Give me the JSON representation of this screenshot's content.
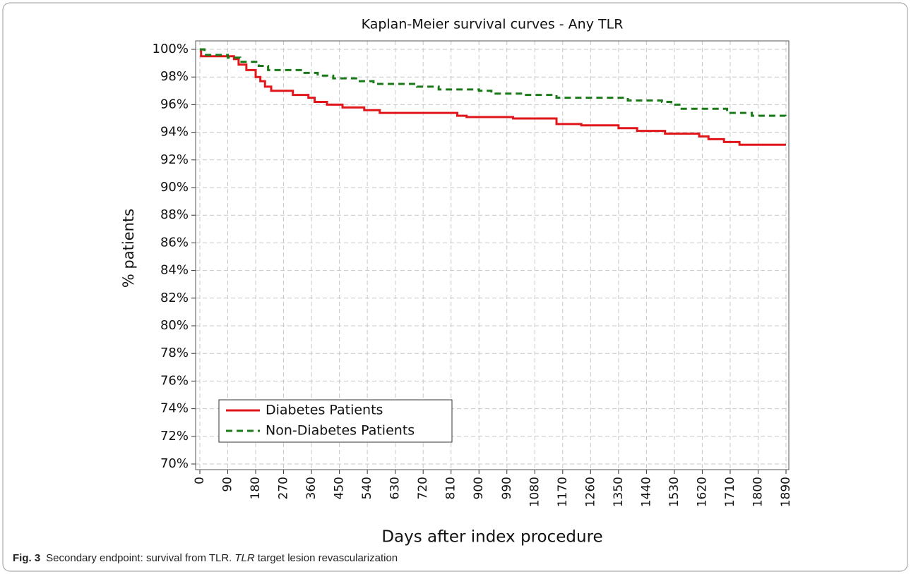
{
  "chart_data": {
    "type": "line",
    "step": true,
    "title": "Kaplan-Meier survival curves - Any TLR",
    "x_label": "Days after index procedure",
    "y_label": "% patients",
    "xlim": [
      0,
      1890
    ],
    "ylim": [
      70,
      100
    ],
    "xticks": [
      0,
      90,
      180,
      270,
      360,
      450,
      540,
      630,
      720,
      810,
      900,
      990,
      1080,
      1170,
      1260,
      1350,
      1440,
      1530,
      1620,
      1710,
      1800,
      1890
    ],
    "yticks": [
      {
        "value": 70,
        "label": "70%"
      },
      {
        "value": 72,
        "label": "72%"
      },
      {
        "value": 74,
        "label": "74%"
      },
      {
        "value": 76,
        "label": "76%"
      },
      {
        "value": 78,
        "label": "78%"
      },
      {
        "value": 80,
        "label": "80%"
      },
      {
        "value": 82,
        "label": "82%"
      },
      {
        "value": 84,
        "label": "84%"
      },
      {
        "value": 86,
        "label": "86%"
      },
      {
        "value": 88,
        "label": "88%"
      },
      {
        "value": 90,
        "label": "90%"
      },
      {
        "value": 92,
        "label": "92%"
      },
      {
        "value": 94,
        "label": "94%"
      },
      {
        "value": 96,
        "label": "96%"
      },
      {
        "value": 98,
        "label": "98%"
      },
      {
        "value": 100,
        "label": "100%"
      }
    ],
    "grid": true,
    "legend": "lower left",
    "series": [
      {
        "name": "Diabetes Patients",
        "color": "#e0161b",
        "linestyle": "solid",
        "x": [
          0,
          4,
          110,
          125,
          150,
          180,
          195,
          210,
          230,
          300,
          350,
          370,
          410,
          460,
          530,
          580,
          830,
          860,
          1010,
          1150,
          1230,
          1350,
          1410,
          1500,
          1610,
          1640,
          1690,
          1740,
          1890
        ],
        "values": [
          100,
          99.5,
          99.3,
          98.9,
          98.5,
          98.0,
          97.7,
          97.3,
          97.0,
          96.7,
          96.5,
          96.2,
          96.0,
          95.8,
          95.6,
          95.4,
          95.2,
          95.1,
          95.0,
          94.6,
          94.5,
          94.3,
          94.1,
          93.9,
          93.7,
          93.5,
          93.3,
          93.1,
          93.1
        ]
      },
      {
        "name": "Non-Diabetes Patients",
        "color": "#1a7a1a",
        "linestyle": "dashed",
        "x": [
          0,
          15,
          90,
          130,
          190,
          220,
          330,
          380,
          430,
          510,
          560,
          700,
          770,
          900,
          940,
          1040,
          1150,
          1380,
          1490,
          1520,
          1550,
          1700,
          1780,
          1888
        ],
        "values": [
          100,
          99.6,
          99.4,
          99.1,
          98.8,
          98.5,
          98.3,
          98.1,
          97.9,
          97.7,
          97.5,
          97.3,
          97.1,
          97.0,
          96.8,
          96.7,
          96.5,
          96.3,
          96.2,
          96.0,
          95.7,
          95.4,
          95.2,
          95.0
        ]
      }
    ]
  },
  "caption": {
    "label": "Fig. 3",
    "text": "Secondary endpoint: survival from TLR.",
    "term": "TLR",
    "definition": "target lesion revascularization"
  }
}
